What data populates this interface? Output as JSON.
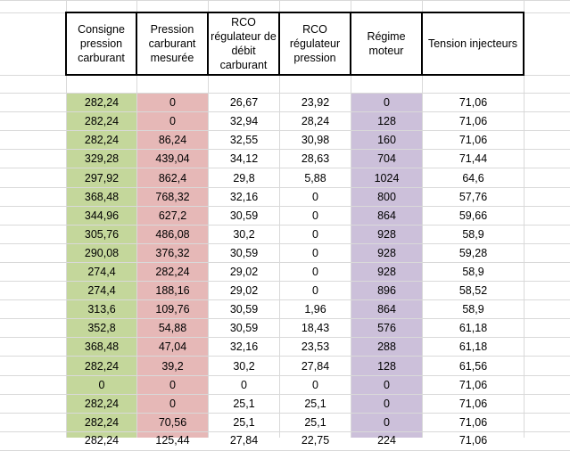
{
  "sheet": {
    "headers": [
      "Consigne pression carburant",
      "Pression carburant mesurée",
      "RCO régulateur de débit carburant",
      "RCO régulateur pression",
      "Régime moteur",
      "Tension injecteurs"
    ],
    "column_colors": [
      "#c4d79b",
      "#e6b8b7",
      "",
      "",
      "#ccc0da",
      ""
    ],
    "rows": [
      [
        "282,24",
        "0",
        "26,67",
        "23,92",
        "0",
        "71,06"
      ],
      [
        "282,24",
        "0",
        "32,94",
        "28,24",
        "128",
        "71,06"
      ],
      [
        "282,24",
        "86,24",
        "32,55",
        "30,98",
        "160",
        "71,06"
      ],
      [
        "329,28",
        "439,04",
        "34,12",
        "28,63",
        "704",
        "71,44"
      ],
      [
        "297,92",
        "862,4",
        "29,8",
        "5,88",
        "1024",
        "64,6"
      ],
      [
        "368,48",
        "768,32",
        "32,16",
        "0",
        "800",
        "57,76"
      ],
      [
        "344,96",
        "627,2",
        "30,59",
        "0",
        "864",
        "59,66"
      ],
      [
        "305,76",
        "486,08",
        "30,2",
        "0",
        "928",
        "58,9"
      ],
      [
        "290,08",
        "376,32",
        "30,59",
        "0",
        "928",
        "59,28"
      ],
      [
        "274,4",
        "282,24",
        "29,02",
        "0",
        "928",
        "58,9"
      ],
      [
        "274,4",
        "188,16",
        "29,02",
        "0",
        "896",
        "58,52"
      ],
      [
        "313,6",
        "109,76",
        "30,59",
        "1,96",
        "864",
        "58,9"
      ],
      [
        "352,8",
        "54,88",
        "30,59",
        "18,43",
        "576",
        "61,18"
      ],
      [
        "368,48",
        "47,04",
        "32,16",
        "23,53",
        "288",
        "61,18"
      ],
      [
        "282,24",
        "39,2",
        "30,2",
        "27,84",
        "128",
        "61,56"
      ],
      [
        "0",
        "0",
        "0",
        "0",
        "0",
        "71,06"
      ],
      [
        "282,24",
        "0",
        "25,1",
        "25,1",
        "0",
        "71,06"
      ],
      [
        "282,24",
        "70,56",
        "25,1",
        "25,1",
        "0",
        "71,06"
      ]
    ],
    "partial_row": [
      "282,24",
      "125,44",
      "27,84",
      "22,75",
      "224",
      "71,06"
    ]
  }
}
